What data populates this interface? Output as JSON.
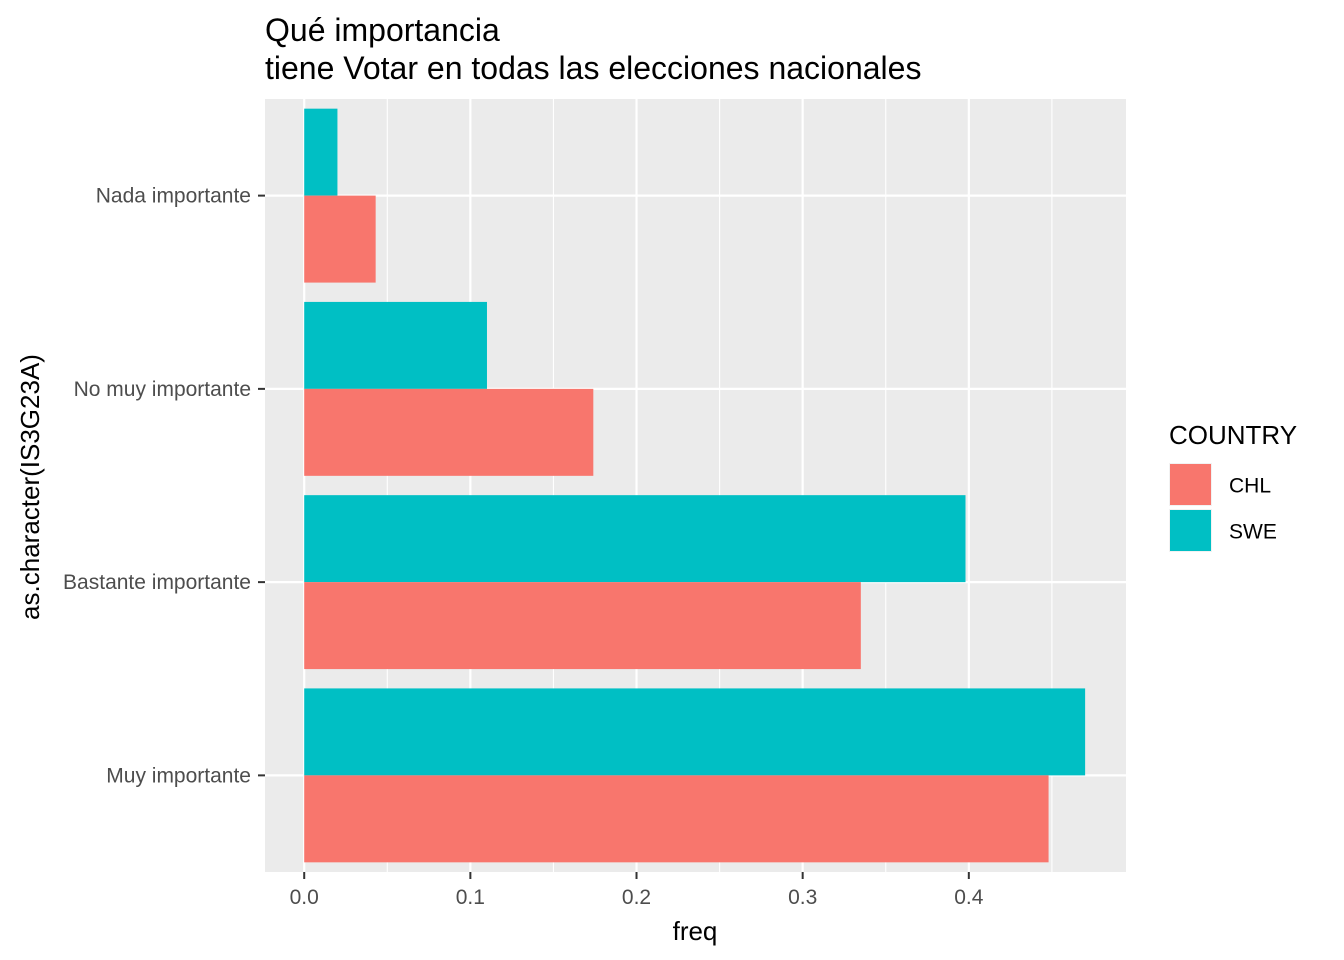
{
  "chart_data": {
    "type": "bar",
    "orientation": "horizontal",
    "title_lines": [
      "Qué importancia",
      "tiene Votar en todas las elecciones nacionales"
    ],
    "xlabel": "freq",
    "ylabel": "as.character(IS3G23A)",
    "categories": [
      "Nada importante",
      "No muy importante",
      "Bastante importante",
      "Muy importante"
    ],
    "x_ticks": [
      "0.0",
      "0.1",
      "0.2",
      "0.3",
      "0.4"
    ],
    "x_tick_values": [
      0,
      0.1,
      0.2,
      0.3,
      0.4
    ],
    "xlim": [
      -0.0236,
      0.4946
    ],
    "grid": true,
    "legend": {
      "title": "COUNTRY",
      "position": "right"
    },
    "series": [
      {
        "name": "CHL",
        "color": "#F8766D",
        "values": [
          0.043,
          0.174,
          0.335,
          0.448
        ]
      },
      {
        "name": "SWE",
        "color": "#00BFC4",
        "values": [
          0.02,
          0.11,
          0.398,
          0.47
        ]
      }
    ],
    "panel_background": "#EBEBEB",
    "grid_color": "#FFFFFF"
  }
}
